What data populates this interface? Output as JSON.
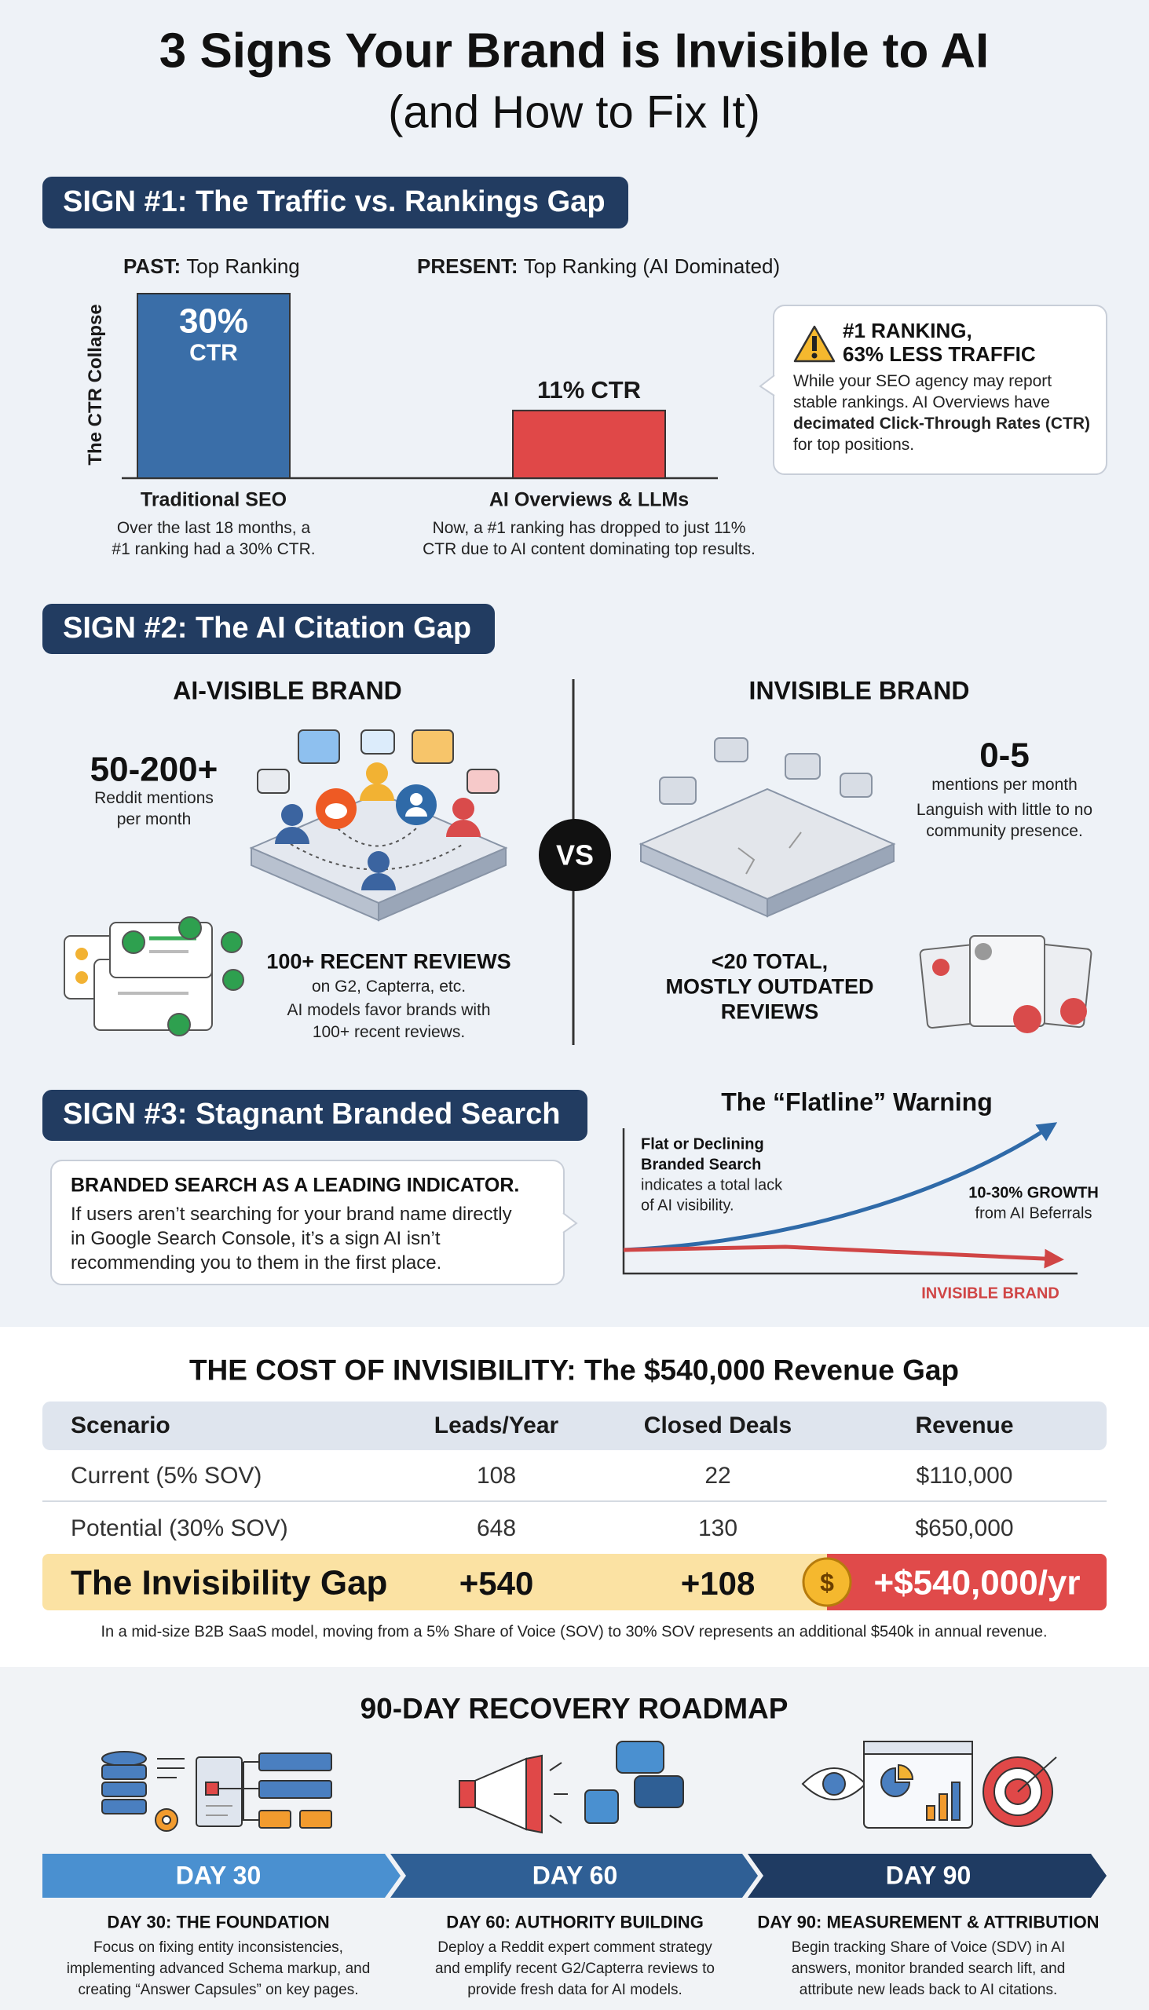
{
  "header": {
    "title": "3 Signs Your Brand is Invisible to AI",
    "subtitle": "(and How to Fix It)"
  },
  "chart_data": {
    "type": "bar",
    "title": "SIGN #1: The Traffic vs. Rankings Gap",
    "ylabel": "The CTR Collapse",
    "column_headers": [
      {
        "label": "PAST:",
        "text": "Top Ranking"
      },
      {
        "label": "PRESENT:",
        "text": "Top Ranking (AI Dominated)"
      }
    ],
    "categories": [
      "Traditional SEO",
      "AI Overviews & LLMs"
    ],
    "values": [
      30,
      11
    ],
    "value_labels": [
      "30%",
      "11%"
    ],
    "unit_label": "CTR",
    "colors": [
      "#3a6ea8",
      "#e04848"
    ],
    "captions": [
      [
        "Over the last 18 months, a",
        "#1 ranking had a 30% CTR."
      ],
      [
        "Now, a #1 ranking has dropped to just 11%",
        "CTR due to AI content dominating top results."
      ]
    ],
    "callout": {
      "title": [
        "#1 RANKING,",
        "63% LESS TRAFFIC"
      ],
      "body": [
        "While your SEO agency may report stable rankings. AI Overviews have ",
        "decimated Click-Through Rates (CTR)",
        " for top positions."
      ]
    }
  },
  "sign2": {
    "heading": "SIGN #2: The AI Citation Gap",
    "vs": "VS",
    "visible": {
      "title": "AI-VISIBLE BRAND",
      "stat": "50-200+",
      "stat_caption": [
        "Reddit mentions",
        "per month"
      ],
      "reviews_title": "100+ RECENT REVIEWS",
      "reviews_sub": "on G2, Capterra, etc.",
      "reviews_caption": [
        "AI models favor brands with",
        "100+ recent reviews."
      ]
    },
    "invisible": {
      "title": "INVISIBLE BRAND",
      "stat": "0-5",
      "stat_caption": "mentions per month",
      "stat_detail": [
        "Languish with little to no",
        "community presence."
      ],
      "reviews_title": [
        "<20 TOTAL,",
        "MOSTLY OUTDATED",
        "REVIEWS"
      ]
    }
  },
  "sign3": {
    "heading": "SIGN #3: Stagnant Branded Search",
    "callout": {
      "title": "BRANDED SEARCH AS A LEADING INDICATOR.",
      "body": [
        "If users aren’t searching for your brand name directly",
        "in Google Search Console, it’s a sign AI isn’t",
        "recommending you to them in the first place."
      ]
    },
    "chart": {
      "title": "The “Flatline” Warning",
      "note_title": [
        "Flat or Declining",
        "Branded Search"
      ],
      "note_body": [
        "indicates a total lack",
        "of AI visibility."
      ],
      "growth_title": "10-30% GROWTH",
      "growth_sub": "from AI Beferrals",
      "invisible_label": "INVISIBLE BRAND"
    }
  },
  "cost": {
    "title": "THE COST OF INVISIBILITY: The $540,000 Revenue Gap",
    "columns": [
      "Scenario",
      "Leads/Year",
      "Closed Deals",
      "Revenue"
    ],
    "rows": [
      [
        "Current (5% SOV)",
        "108",
        "22",
        "$110,000"
      ],
      [
        "Potential (30% SOV)",
        "648",
        "130",
        "$650,000"
      ]
    ],
    "gap": [
      "The Invisibility Gap",
      "+540",
      "+108",
      "+$540,000/yr"
    ],
    "coin": "$",
    "footnote": "In a mid-size B2B SaaS model, moving from a 5% Share of Voice (SOV) to 30% SOV represents an additional $540k in annual revenue."
  },
  "roadmap": {
    "title": "90-DAY RECOVERY ROADMAP",
    "steps": [
      {
        "day": "DAY 30",
        "title": "DAY 30: THE FOUNDATION",
        "body": [
          "Focus on fixing entity inconsistencies,",
          "implementing advanced Schema markup, and",
          "creating “Answer Capsules” on key pages."
        ]
      },
      {
        "day": "DAY 60",
        "title": "DAY 60: AUTHORITY BUILDING",
        "body": [
          "Deploy a Reddit expert comment strategy",
          "and emplify recent G2/Capterra reviews to",
          "provide fresh data for AI models."
        ]
      },
      {
        "day": "DAY 90",
        "title": "DAY 90: MEASUREMENT & ATTRIBUTION",
        "body": [
          "Begin tracking Share of Voice (SDV) in AI",
          "answers, monitor branded search lift, and",
          "attribute new leads back to AI citations."
        ]
      }
    ]
  }
}
